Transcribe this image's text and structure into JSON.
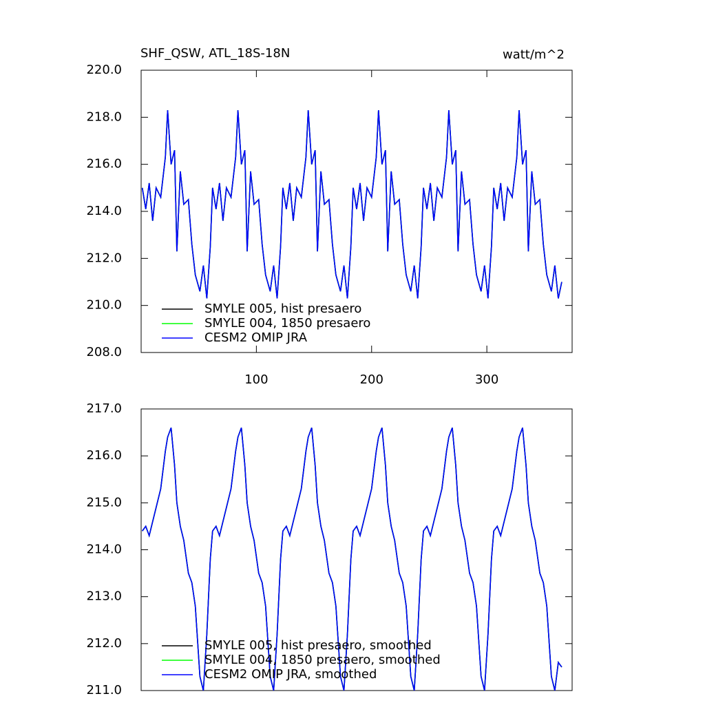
{
  "chart_data": [
    {
      "type": "line",
      "title": "SHF_QSW, ATL_18S-18N",
      "units": "watt/m^2",
      "x": [
        1,
        4,
        7,
        10,
        13,
        17,
        21,
        23,
        26,
        29,
        31,
        34,
        37,
        41,
        44,
        47,
        51,
        54,
        57,
        60,
        62,
        65,
        68,
        71,
        74,
        78,
        82,
        84,
        87,
        90,
        92,
        95,
        98,
        102,
        105,
        108,
        112,
        115,
        118,
        121,
        123,
        126,
        129,
        132,
        135,
        139,
        143,
        145,
        148,
        151,
        153,
        156,
        159,
        163,
        166,
        169,
        173,
        176,
        179,
        182,
        184,
        187,
        190,
        193,
        196,
        200,
        204,
        206,
        209,
        212,
        214,
        217,
        220,
        224,
        227,
        230,
        234,
        237,
        240,
        243,
        245,
        248,
        251,
        254,
        257,
        261,
        265,
        267,
        270,
        273,
        275,
        278,
        281,
        285,
        288,
        291,
        295,
        298,
        301,
        304,
        306,
        309,
        312,
        315,
        318,
        322,
        326,
        328,
        331,
        334,
        336,
        339,
        342,
        346,
        349,
        352,
        356,
        359,
        362,
        365
      ],
      "series": [
        {
          "name": "SMYLE 005, hist presaero",
          "color": "#000000",
          "values": [
            215.0,
            214.1,
            215.2,
            213.6,
            215.0,
            214.6,
            216.3,
            218.3,
            216.0,
            216.6,
            212.3,
            215.7,
            214.3,
            214.5,
            212.6,
            211.3,
            210.6,
            211.7,
            210.3,
            212.5,
            215.0,
            214.1,
            215.2,
            213.6,
            215.0,
            214.6,
            216.3,
            218.3,
            216.0,
            216.6,
            212.3,
            215.7,
            214.3,
            214.5,
            212.6,
            211.3,
            210.6,
            211.7,
            210.3,
            212.5,
            215.0,
            214.1,
            215.2,
            213.6,
            215.0,
            214.6,
            216.3,
            218.3,
            216.0,
            216.6,
            212.3,
            215.7,
            214.3,
            214.5,
            212.6,
            211.3,
            210.6,
            211.7,
            210.3,
            212.5,
            215.0,
            214.1,
            215.2,
            213.6,
            215.0,
            214.6,
            216.3,
            218.3,
            216.0,
            216.6,
            212.3,
            215.7,
            214.3,
            214.5,
            212.6,
            211.3,
            210.6,
            211.7,
            210.3,
            212.5,
            215.0,
            214.1,
            215.2,
            213.6,
            215.0,
            214.6,
            216.3,
            218.3,
            216.0,
            216.6,
            212.3,
            215.7,
            214.3,
            214.5,
            212.6,
            211.3,
            210.6,
            211.7,
            210.3,
            212.5,
            215.0,
            214.1,
            215.2,
            213.6,
            215.0,
            214.6,
            216.3,
            218.3,
            216.0,
            216.6,
            212.3,
            215.7,
            214.3,
            214.5,
            212.6,
            211.3,
            210.6,
            211.7,
            210.3,
            211.0
          ]
        },
        {
          "name": "SMYLE 004, 1850 presaero",
          "color": "#00ff00",
          "values": [
            215.0,
            214.1,
            215.2,
            213.6,
            215.0,
            214.6,
            216.3,
            218.3,
            216.0,
            216.6,
            212.3,
            215.7,
            214.3,
            214.5,
            212.6,
            211.3,
            210.6,
            211.7,
            210.3,
            212.5,
            215.0,
            214.1,
            215.2,
            213.6,
            215.0,
            214.6,
            216.3,
            218.3,
            216.0,
            216.6,
            212.3,
            215.7,
            214.3,
            214.5,
            212.6,
            211.3,
            210.6,
            211.7,
            210.3,
            212.5,
            215.0,
            214.1,
            215.2,
            213.6,
            215.0,
            214.6,
            216.3,
            218.3,
            216.0,
            216.6,
            212.3,
            215.7,
            214.3,
            214.5,
            212.6,
            211.3,
            210.6,
            211.7,
            210.3,
            212.5,
            215.0,
            214.1,
            215.2,
            213.6,
            215.0,
            214.6,
            216.3,
            218.3,
            216.0,
            216.6,
            212.3,
            215.7,
            214.3,
            214.5,
            212.6,
            211.3,
            210.6,
            211.7,
            210.3,
            212.5,
            215.0,
            214.1,
            215.2,
            213.6,
            215.0,
            214.6,
            216.3,
            218.3,
            216.0,
            216.6,
            212.3,
            215.7,
            214.3,
            214.5,
            212.6,
            211.3,
            210.6,
            211.7,
            210.3,
            212.5,
            215.0,
            214.1,
            215.2,
            213.6,
            215.0,
            214.6,
            216.3,
            218.3,
            216.0,
            216.6,
            212.3,
            215.7,
            214.3,
            214.5,
            212.6,
            211.3,
            210.6,
            211.7,
            210.3,
            211.0
          ]
        },
        {
          "name": "CESM2 OMIP JRA",
          "color": "#0000ff",
          "values": [
            215.0,
            214.1,
            215.2,
            213.6,
            215.0,
            214.6,
            216.3,
            218.3,
            216.0,
            216.6,
            212.3,
            215.7,
            214.3,
            214.5,
            212.6,
            211.3,
            210.6,
            211.7,
            210.3,
            212.5,
            215.0,
            214.1,
            215.2,
            213.6,
            215.0,
            214.6,
            216.3,
            218.3,
            216.0,
            216.6,
            212.3,
            215.7,
            214.3,
            214.5,
            212.6,
            211.3,
            210.6,
            211.7,
            210.3,
            212.5,
            215.0,
            214.1,
            215.2,
            213.6,
            215.0,
            214.6,
            216.3,
            218.3,
            216.0,
            216.6,
            212.3,
            215.7,
            214.3,
            214.5,
            212.6,
            211.3,
            210.6,
            211.7,
            210.3,
            212.5,
            215.0,
            214.1,
            215.2,
            213.6,
            215.0,
            214.6,
            216.3,
            218.3,
            216.0,
            216.6,
            212.3,
            215.7,
            214.3,
            214.5,
            212.6,
            211.3,
            210.6,
            211.7,
            210.3,
            212.5,
            215.0,
            214.1,
            215.2,
            213.6,
            215.0,
            214.6,
            216.3,
            218.3,
            216.0,
            216.6,
            212.3,
            215.7,
            214.3,
            214.5,
            212.6,
            211.3,
            210.6,
            211.7,
            210.3,
            212.5,
            215.0,
            214.1,
            215.2,
            213.6,
            215.0,
            214.6,
            216.3,
            218.3,
            216.0,
            216.6,
            212.3,
            215.7,
            214.3,
            214.5,
            212.6,
            211.3,
            210.6,
            211.7,
            210.3,
            211.0
          ]
        }
      ],
      "xlim": [
        0,
        374
      ],
      "xticks": [
        100,
        200,
        300
      ],
      "ylim": [
        208,
        220
      ],
      "yticks": [
        {
          "value": 208,
          "label": "208.0"
        },
        {
          "value": 210,
          "label": "210.0"
        },
        {
          "value": 212,
          "label": "212.0"
        },
        {
          "value": 214,
          "label": "214.0"
        },
        {
          "value": 216,
          "label": "216.0"
        },
        {
          "value": 218,
          "label": "218.0"
        },
        {
          "value": 220,
          "label": "220.0"
        }
      ],
      "legend": "lower left"
    },
    {
      "type": "line",
      "x": [
        1,
        4,
        7,
        10,
        13,
        17,
        21,
        23,
        26,
        29,
        31,
        34,
        37,
        41,
        44,
        47,
        51,
        54,
        57,
        60,
        62,
        65,
        68,
        71,
        74,
        78,
        82,
        84,
        87,
        90,
        92,
        95,
        98,
        102,
        105,
        108,
        112,
        115,
        118,
        121,
        123,
        126,
        129,
        132,
        135,
        139,
        143,
        145,
        148,
        151,
        153,
        156,
        159,
        163,
        166,
        169,
        173,
        176,
        179,
        182,
        184,
        187,
        190,
        193,
        196,
        200,
        204,
        206,
        209,
        212,
        214,
        217,
        220,
        224,
        227,
        230,
        234,
        237,
        240,
        243,
        245,
        248,
        251,
        254,
        257,
        261,
        265,
        267,
        270,
        273,
        275,
        278,
        281,
        285,
        288,
        291,
        295,
        298,
        301,
        304,
        306,
        309,
        312,
        315,
        318,
        322,
        326,
        328,
        331,
        334,
        336,
        339,
        342,
        346,
        349,
        352,
        356,
        359,
        362,
        365
      ],
      "series": [
        {
          "name": "SMYLE 005, hist presaero, smoothed",
          "color": "#000000",
          "values": [
            214.4,
            214.5,
            214.3,
            214.6,
            214.9,
            215.3,
            216.1,
            216.4,
            216.6,
            215.8,
            215.0,
            214.5,
            214.2,
            213.5,
            213.3,
            212.8,
            211.3,
            211.0,
            212.2,
            213.8,
            214.4,
            214.5,
            214.3,
            214.6,
            214.9,
            215.3,
            216.1,
            216.4,
            216.6,
            215.8,
            215.0,
            214.5,
            214.2,
            213.5,
            213.3,
            212.8,
            211.3,
            211.0,
            212.2,
            213.8,
            214.4,
            214.5,
            214.3,
            214.6,
            214.9,
            215.3,
            216.1,
            216.4,
            216.6,
            215.8,
            215.0,
            214.5,
            214.2,
            213.5,
            213.3,
            212.8,
            211.3,
            211.0,
            212.2,
            213.8,
            214.4,
            214.5,
            214.3,
            214.6,
            214.9,
            215.3,
            216.1,
            216.4,
            216.6,
            215.8,
            215.0,
            214.5,
            214.2,
            213.5,
            213.3,
            212.8,
            211.3,
            211.0,
            212.2,
            213.8,
            214.4,
            214.5,
            214.3,
            214.6,
            214.9,
            215.3,
            216.1,
            216.4,
            216.6,
            215.8,
            215.0,
            214.5,
            214.2,
            213.5,
            213.3,
            212.8,
            211.3,
            211.0,
            212.2,
            213.8,
            214.4,
            214.5,
            214.3,
            214.6,
            214.9,
            215.3,
            216.1,
            216.4,
            216.6,
            215.8,
            215.0,
            214.5,
            214.2,
            213.5,
            213.3,
            212.8,
            211.3,
            211.0,
            211.6,
            211.5
          ]
        },
        {
          "name": "SMYLE 004, 1850 presaero, smoothed",
          "color": "#00ff00",
          "values": [
            214.4,
            214.5,
            214.3,
            214.6,
            214.9,
            215.3,
            216.1,
            216.4,
            216.6,
            215.8,
            215.0,
            214.5,
            214.2,
            213.5,
            213.3,
            212.8,
            211.3,
            211.0,
            212.2,
            213.8,
            214.4,
            214.5,
            214.3,
            214.6,
            214.9,
            215.3,
            216.1,
            216.4,
            216.6,
            215.8,
            215.0,
            214.5,
            214.2,
            213.5,
            213.3,
            212.8,
            211.3,
            211.0,
            212.2,
            213.8,
            214.4,
            214.5,
            214.3,
            214.6,
            214.9,
            215.3,
            216.1,
            216.4,
            216.6,
            215.8,
            215.0,
            214.5,
            214.2,
            213.5,
            213.3,
            212.8,
            211.3,
            211.0,
            212.2,
            213.8,
            214.4,
            214.5,
            214.3,
            214.6,
            214.9,
            215.3,
            216.1,
            216.4,
            216.6,
            215.8,
            215.0,
            214.5,
            214.2,
            213.5,
            213.3,
            212.8,
            211.3,
            211.0,
            212.2,
            213.8,
            214.4,
            214.5,
            214.3,
            214.6,
            214.9,
            215.3,
            216.1,
            216.4,
            216.6,
            215.8,
            215.0,
            214.5,
            214.2,
            213.5,
            213.3,
            212.8,
            211.3,
            211.0,
            212.2,
            213.8,
            214.4,
            214.5,
            214.3,
            214.6,
            214.9,
            215.3,
            216.1,
            216.4,
            216.6,
            215.8,
            215.0,
            214.5,
            214.2,
            213.5,
            213.3,
            212.8,
            211.3,
            211.0,
            211.6,
            211.5
          ]
        },
        {
          "name": "CESM2 OMIP JRA, smoothed",
          "color": "#0000ff",
          "values": [
            214.4,
            214.5,
            214.3,
            214.6,
            214.9,
            215.3,
            216.1,
            216.4,
            216.6,
            215.8,
            215.0,
            214.5,
            214.2,
            213.5,
            213.3,
            212.8,
            211.3,
            211.0,
            212.2,
            213.8,
            214.4,
            214.5,
            214.3,
            214.6,
            214.9,
            215.3,
            216.1,
            216.4,
            216.6,
            215.8,
            215.0,
            214.5,
            214.2,
            213.5,
            213.3,
            212.8,
            211.3,
            211.0,
            212.2,
            213.8,
            214.4,
            214.5,
            214.3,
            214.6,
            214.9,
            215.3,
            216.1,
            216.4,
            216.6,
            215.8,
            215.0,
            214.5,
            214.2,
            213.5,
            213.3,
            212.8,
            211.3,
            211.0,
            212.2,
            213.8,
            214.4,
            214.5,
            214.3,
            214.6,
            214.9,
            215.3,
            216.1,
            216.4,
            216.6,
            215.8,
            215.0,
            214.5,
            214.2,
            213.5,
            213.3,
            212.8,
            211.3,
            211.0,
            212.2,
            213.8,
            214.4,
            214.5,
            214.3,
            214.6,
            214.9,
            215.3,
            216.1,
            216.4,
            216.6,
            215.8,
            215.0,
            214.5,
            214.2,
            213.5,
            213.3,
            212.8,
            211.3,
            211.0,
            212.2,
            213.8,
            214.4,
            214.5,
            214.3,
            214.6,
            214.9,
            215.3,
            216.1,
            216.4,
            216.6,
            215.8,
            215.0,
            214.5,
            214.2,
            213.5,
            213.3,
            212.8,
            211.3,
            211.0,
            211.6,
            211.5
          ]
        }
      ],
      "xlim": [
        0,
        374
      ],
      "ylim": [
        211,
        217
      ],
      "yticks": [
        {
          "value": 211,
          "label": "211.0"
        },
        {
          "value": 212,
          "label": "212.0"
        },
        {
          "value": 213,
          "label": "213.0"
        },
        {
          "value": 214,
          "label": "214.0"
        },
        {
          "value": 215,
          "label": "215.0"
        },
        {
          "value": 216,
          "label": "216.0"
        },
        {
          "value": 217,
          "label": "217.0"
        }
      ],
      "legend": "lower left"
    }
  ]
}
